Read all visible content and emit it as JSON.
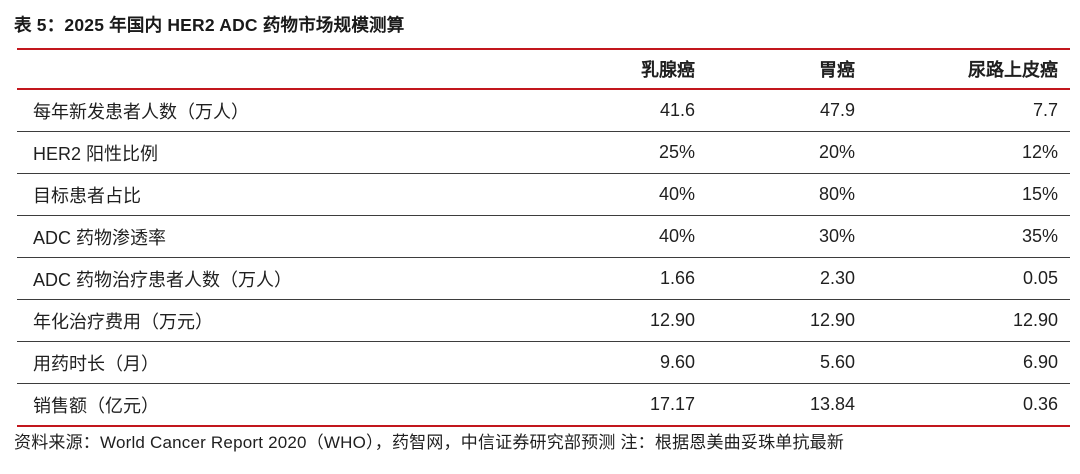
{
  "title": "表 5：2025 年国内 HER2 ADC 药物市场规模测算",
  "colors": {
    "accent_red": "#C2171D",
    "separator_gray": "#3D3D3D",
    "text": "#1F1F1F",
    "background": "#FFFFFF"
  },
  "table": {
    "columns": [
      "乳腺癌",
      "胃癌",
      "尿路上皮癌"
    ],
    "rows": [
      {
        "label": "每年新发患者人数（万人）",
        "values": [
          "41.6",
          "47.9",
          "7.7"
        ]
      },
      {
        "label": "HER2 阳性比例",
        "values": [
          "25%",
          "20%",
          "12%"
        ]
      },
      {
        "label": "目标患者占比",
        "values": [
          "40%",
          "80%",
          "15%"
        ]
      },
      {
        "label": "ADC 药物渗透率",
        "values": [
          "40%",
          "30%",
          "35%"
        ]
      },
      {
        "label": "ADC 药物治疗患者人数（万人）",
        "values": [
          "1.66",
          "2.30",
          "0.05"
        ]
      },
      {
        "label": "年化治疗费用（万元）",
        "values": [
          "12.90",
          "12.90",
          "12.90"
        ]
      },
      {
        "label": "用药时长（月）",
        "values": [
          "9.60",
          "5.60",
          "6.90"
        ]
      },
      {
        "label": "销售额（亿元）",
        "values": [
          "17.17",
          "13.84",
          "0.36"
        ]
      }
    ]
  },
  "footer": "资料来源：World Cancer Report 2020（WHO），药智网，中信证券研究部预测 注：根据恩美曲妥珠单抗最新"
}
